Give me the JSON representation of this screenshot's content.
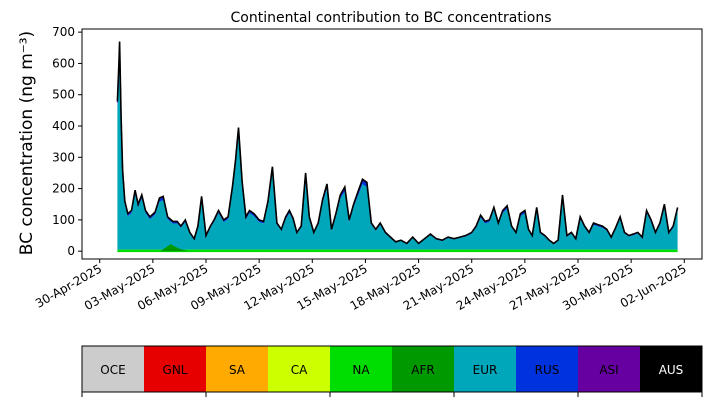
{
  "chart_data": {
    "type": "area",
    "title": "Continental contribution to BC concentrations",
    "ylabel": "BC concentration (ng m⁻³)",
    "xlabel": "",
    "xlim": [
      "2025-04-29T00:00",
      "2025-06-03T00:00"
    ],
    "ylim": [
      -25,
      710
    ],
    "yticks": [
      0,
      100,
      200,
      300,
      400,
      500,
      600,
      700
    ],
    "xticks": [
      "30-Apr-2025",
      "03-May-2025",
      "06-May-2025",
      "09-May-2025",
      "12-May-2025",
      "15-May-2025",
      "18-May-2025",
      "21-May-2025",
      "24-May-2025",
      "27-May-2025",
      "30-May-2025",
      "02-Jun-2025"
    ],
    "xtick_dates": [
      "2025-04-30",
      "2025-05-03",
      "2025-05-06",
      "2025-05-09",
      "2025-05-12",
      "2025-05-15",
      "2025-05-18",
      "2025-05-21",
      "2025-05-24",
      "2025-05-27",
      "2025-05-30",
      "2025-06-02"
    ],
    "series": [
      {
        "name": "NA",
        "color": "#00dd00",
        "values": [
          0
        ]
      },
      {
        "name": "AFR",
        "color": "#009900",
        "values": [
          0
        ]
      },
      {
        "name": "EUR",
        "color": "#00a6b9",
        "values": [
          0
        ]
      },
      {
        "name": "RUS",
        "color": "#0033dd",
        "values": [
          0
        ]
      },
      {
        "name": "ASI",
        "color": "#6600a0",
        "values": [
          0
        ]
      }
    ],
    "total_line_color": "#000000",
    "total_points": [
      [
        "2025-05-01T00:00",
        480
      ],
      [
        "2025-05-01T02:00",
        600
      ],
      [
        "2025-05-01T03:00",
        670
      ],
      [
        "2025-05-01T05:00",
        430
      ],
      [
        "2025-05-01T07:00",
        260
      ],
      [
        "2025-05-01T10:00",
        160
      ],
      [
        "2025-05-01T14:00",
        120
      ],
      [
        "2025-05-01T19:00",
        130
      ],
      [
        "2025-05-02T00:00",
        195
      ],
      [
        "2025-05-02T04:00",
        150
      ],
      [
        "2025-05-02T09:00",
        180
      ],
      [
        "2025-05-02T14:00",
        130
      ],
      [
        "2025-05-02T20:00",
        110
      ],
      [
        "2025-05-03T03:00",
        125
      ],
      [
        "2025-05-03T09:00",
        170
      ],
      [
        "2025-05-03T14:00",
        175
      ],
      [
        "2025-05-03T20:00",
        110
      ],
      [
        "2025-05-04T03:00",
        95
      ],
      [
        "2025-05-04T09:00",
        95
      ],
      [
        "2025-05-04T14:00",
        80
      ],
      [
        "2025-05-04T20:00",
        100
      ],
      [
        "2025-05-05T02:00",
        60
      ],
      [
        "2025-05-05T08:00",
        40
      ],
      [
        "2025-05-05T13:00",
        80
      ],
      [
        "2025-05-05T18:00",
        175
      ],
      [
        "2025-05-06T00:00",
        50
      ],
      [
        "2025-05-06T06:00",
        80
      ],
      [
        "2025-05-06T11:00",
        100
      ],
      [
        "2025-05-06T17:00",
        130
      ],
      [
        "2025-05-07T00:00",
        100
      ],
      [
        "2025-05-07T06:00",
        110
      ],
      [
        "2025-05-07T12:00",
        210
      ],
      [
        "2025-05-07T16:00",
        290
      ],
      [
        "2025-05-07T20:00",
        395
      ],
      [
        "2025-05-08T01:00",
        220
      ],
      [
        "2025-05-08T06:00",
        110
      ],
      [
        "2025-05-08T11:00",
        130
      ],
      [
        "2025-05-08T17:00",
        120
      ],
      [
        "2025-05-09T00:00",
        100
      ],
      [
        "2025-05-09T06:00",
        95
      ],
      [
        "2025-05-09T12:00",
        160
      ],
      [
        "2025-05-09T18:00",
        270
      ],
      [
        "2025-05-10T00:00",
        90
      ],
      [
        "2025-05-10T06:00",
        70
      ],
      [
        "2025-05-10T12:00",
        110
      ],
      [
        "2025-05-10T17:00",
        130
      ],
      [
        "2025-05-10T22:00",
        105
      ],
      [
        "2025-05-11T03:00",
        60
      ],
      [
        "2025-05-11T09:00",
        80
      ],
      [
        "2025-05-11T15:00",
        250
      ],
      [
        "2025-05-11T20:00",
        110
      ],
      [
        "2025-05-12T02:00",
        60
      ],
      [
        "2025-05-12T08:00",
        90
      ],
      [
        "2025-05-12T14:00",
        165
      ],
      [
        "2025-05-12T20:00",
        215
      ],
      [
        "2025-05-13T02:00",
        70
      ],
      [
        "2025-05-13T08:00",
        120
      ],
      [
        "2025-05-13T14:00",
        180
      ],
      [
        "2025-05-13T20:00",
        205
      ],
      [
        "2025-05-14T02:00",
        100
      ],
      [
        "2025-05-14T08:00",
        150
      ],
      [
        "2025-05-14T14:00",
        190
      ],
      [
        "2025-05-14T20:00",
        230
      ],
      [
        "2025-05-15T02:00",
        220
      ],
      [
        "2025-05-15T08:00",
        90
      ],
      [
        "2025-05-15T14:00",
        70
      ],
      [
        "2025-05-15T20:00",
        90
      ],
      [
        "2025-05-16T03:00",
        60
      ],
      [
        "2025-05-16T10:00",
        45
      ],
      [
        "2025-05-16T17:00",
        30
      ],
      [
        "2025-05-17T00:00",
        35
      ],
      [
        "2025-05-17T08:00",
        25
      ],
      [
        "2025-05-17T16:00",
        45
      ],
      [
        "2025-05-18T00:00",
        25
      ],
      [
        "2025-05-18T08:00",
        40
      ],
      [
        "2025-05-18T16:00",
        55
      ],
      [
        "2025-05-19T00:00",
        40
      ],
      [
        "2025-05-19T08:00",
        35
      ],
      [
        "2025-05-19T16:00",
        45
      ],
      [
        "2025-05-20T00:00",
        40
      ],
      [
        "2025-05-20T08:00",
        45
      ],
      [
        "2025-05-20T16:00",
        50
      ],
      [
        "2025-05-21T00:00",
        60
      ],
      [
        "2025-05-21T06:00",
        80
      ],
      [
        "2025-05-21T12:00",
        115
      ],
      [
        "2025-05-21T18:00",
        95
      ],
      [
        "2025-05-22T00:00",
        100
      ],
      [
        "2025-05-22T06:00",
        140
      ],
      [
        "2025-05-22T12:00",
        90
      ],
      [
        "2025-05-22T18:00",
        130
      ],
      [
        "2025-05-23T00:00",
        145
      ],
      [
        "2025-05-23T06:00",
        80
      ],
      [
        "2025-05-23T12:00",
        60
      ],
      [
        "2025-05-23T18:00",
        120
      ],
      [
        "2025-05-24T00:00",
        130
      ],
      [
        "2025-05-24T05:00",
        70
      ],
      [
        "2025-05-24T10:00",
        50
      ],
      [
        "2025-05-24T16:00",
        140
      ],
      [
        "2025-05-24T21:00",
        60
      ],
      [
        "2025-05-25T03:00",
        50
      ],
      [
        "2025-05-25T09:00",
        35
      ],
      [
        "2025-05-25T15:00",
        25
      ],
      [
        "2025-05-25T21:00",
        35
      ],
      [
        "2025-05-26T03:00",
        180
      ],
      [
        "2025-05-26T09:00",
        50
      ],
      [
        "2025-05-26T15:00",
        60
      ],
      [
        "2025-05-26T21:00",
        40
      ],
      [
        "2025-05-27T03:00",
        110
      ],
      [
        "2025-05-27T09:00",
        80
      ],
      [
        "2025-05-27T15:00",
        60
      ],
      [
        "2025-05-27T21:00",
        90
      ],
      [
        "2025-05-28T03:00",
        85
      ],
      [
        "2025-05-28T09:00",
        80
      ],
      [
        "2025-05-28T15:00",
        70
      ],
      [
        "2025-05-28T21:00",
        45
      ],
      [
        "2025-05-29T03:00",
        75
      ],
      [
        "2025-05-29T09:00",
        110
      ],
      [
        "2025-05-29T15:00",
        60
      ],
      [
        "2025-05-29T21:00",
        50
      ],
      [
        "2025-05-30T03:00",
        55
      ],
      [
        "2025-05-30T09:00",
        60
      ],
      [
        "2025-05-30T15:00",
        45
      ],
      [
        "2025-05-30T21:00",
        130
      ],
      [
        "2025-05-31T03:00",
        100
      ],
      [
        "2025-05-31T09:00",
        60
      ],
      [
        "2025-05-31T15:00",
        90
      ],
      [
        "2025-05-31T21:00",
        150
      ],
      [
        "2025-06-01T03:00",
        60
      ],
      [
        "2025-06-01T09:00",
        80
      ],
      [
        "2025-06-01T15:00",
        140
      ]
    ]
  },
  "colorbar": {
    "labels": [
      "OCE",
      "GNL",
      "SA",
      "CA",
      "NA",
      "AFR",
      "EUR",
      "RUS",
      "ASI",
      "AUS"
    ],
    "colors": [
      "#cccccc",
      "#e60000",
      "#ffaa00",
      "#ccff00",
      "#00dd00",
      "#009900",
      "#00a6b9",
      "#0033dd",
      "#6600a0",
      "#000000"
    ],
    "label_colors": [
      "#000000",
      "#000000",
      "#000000",
      "#000000",
      "#000000",
      "#000000",
      "#000000",
      "#000000",
      "#000000",
      "#ffffff"
    ]
  }
}
